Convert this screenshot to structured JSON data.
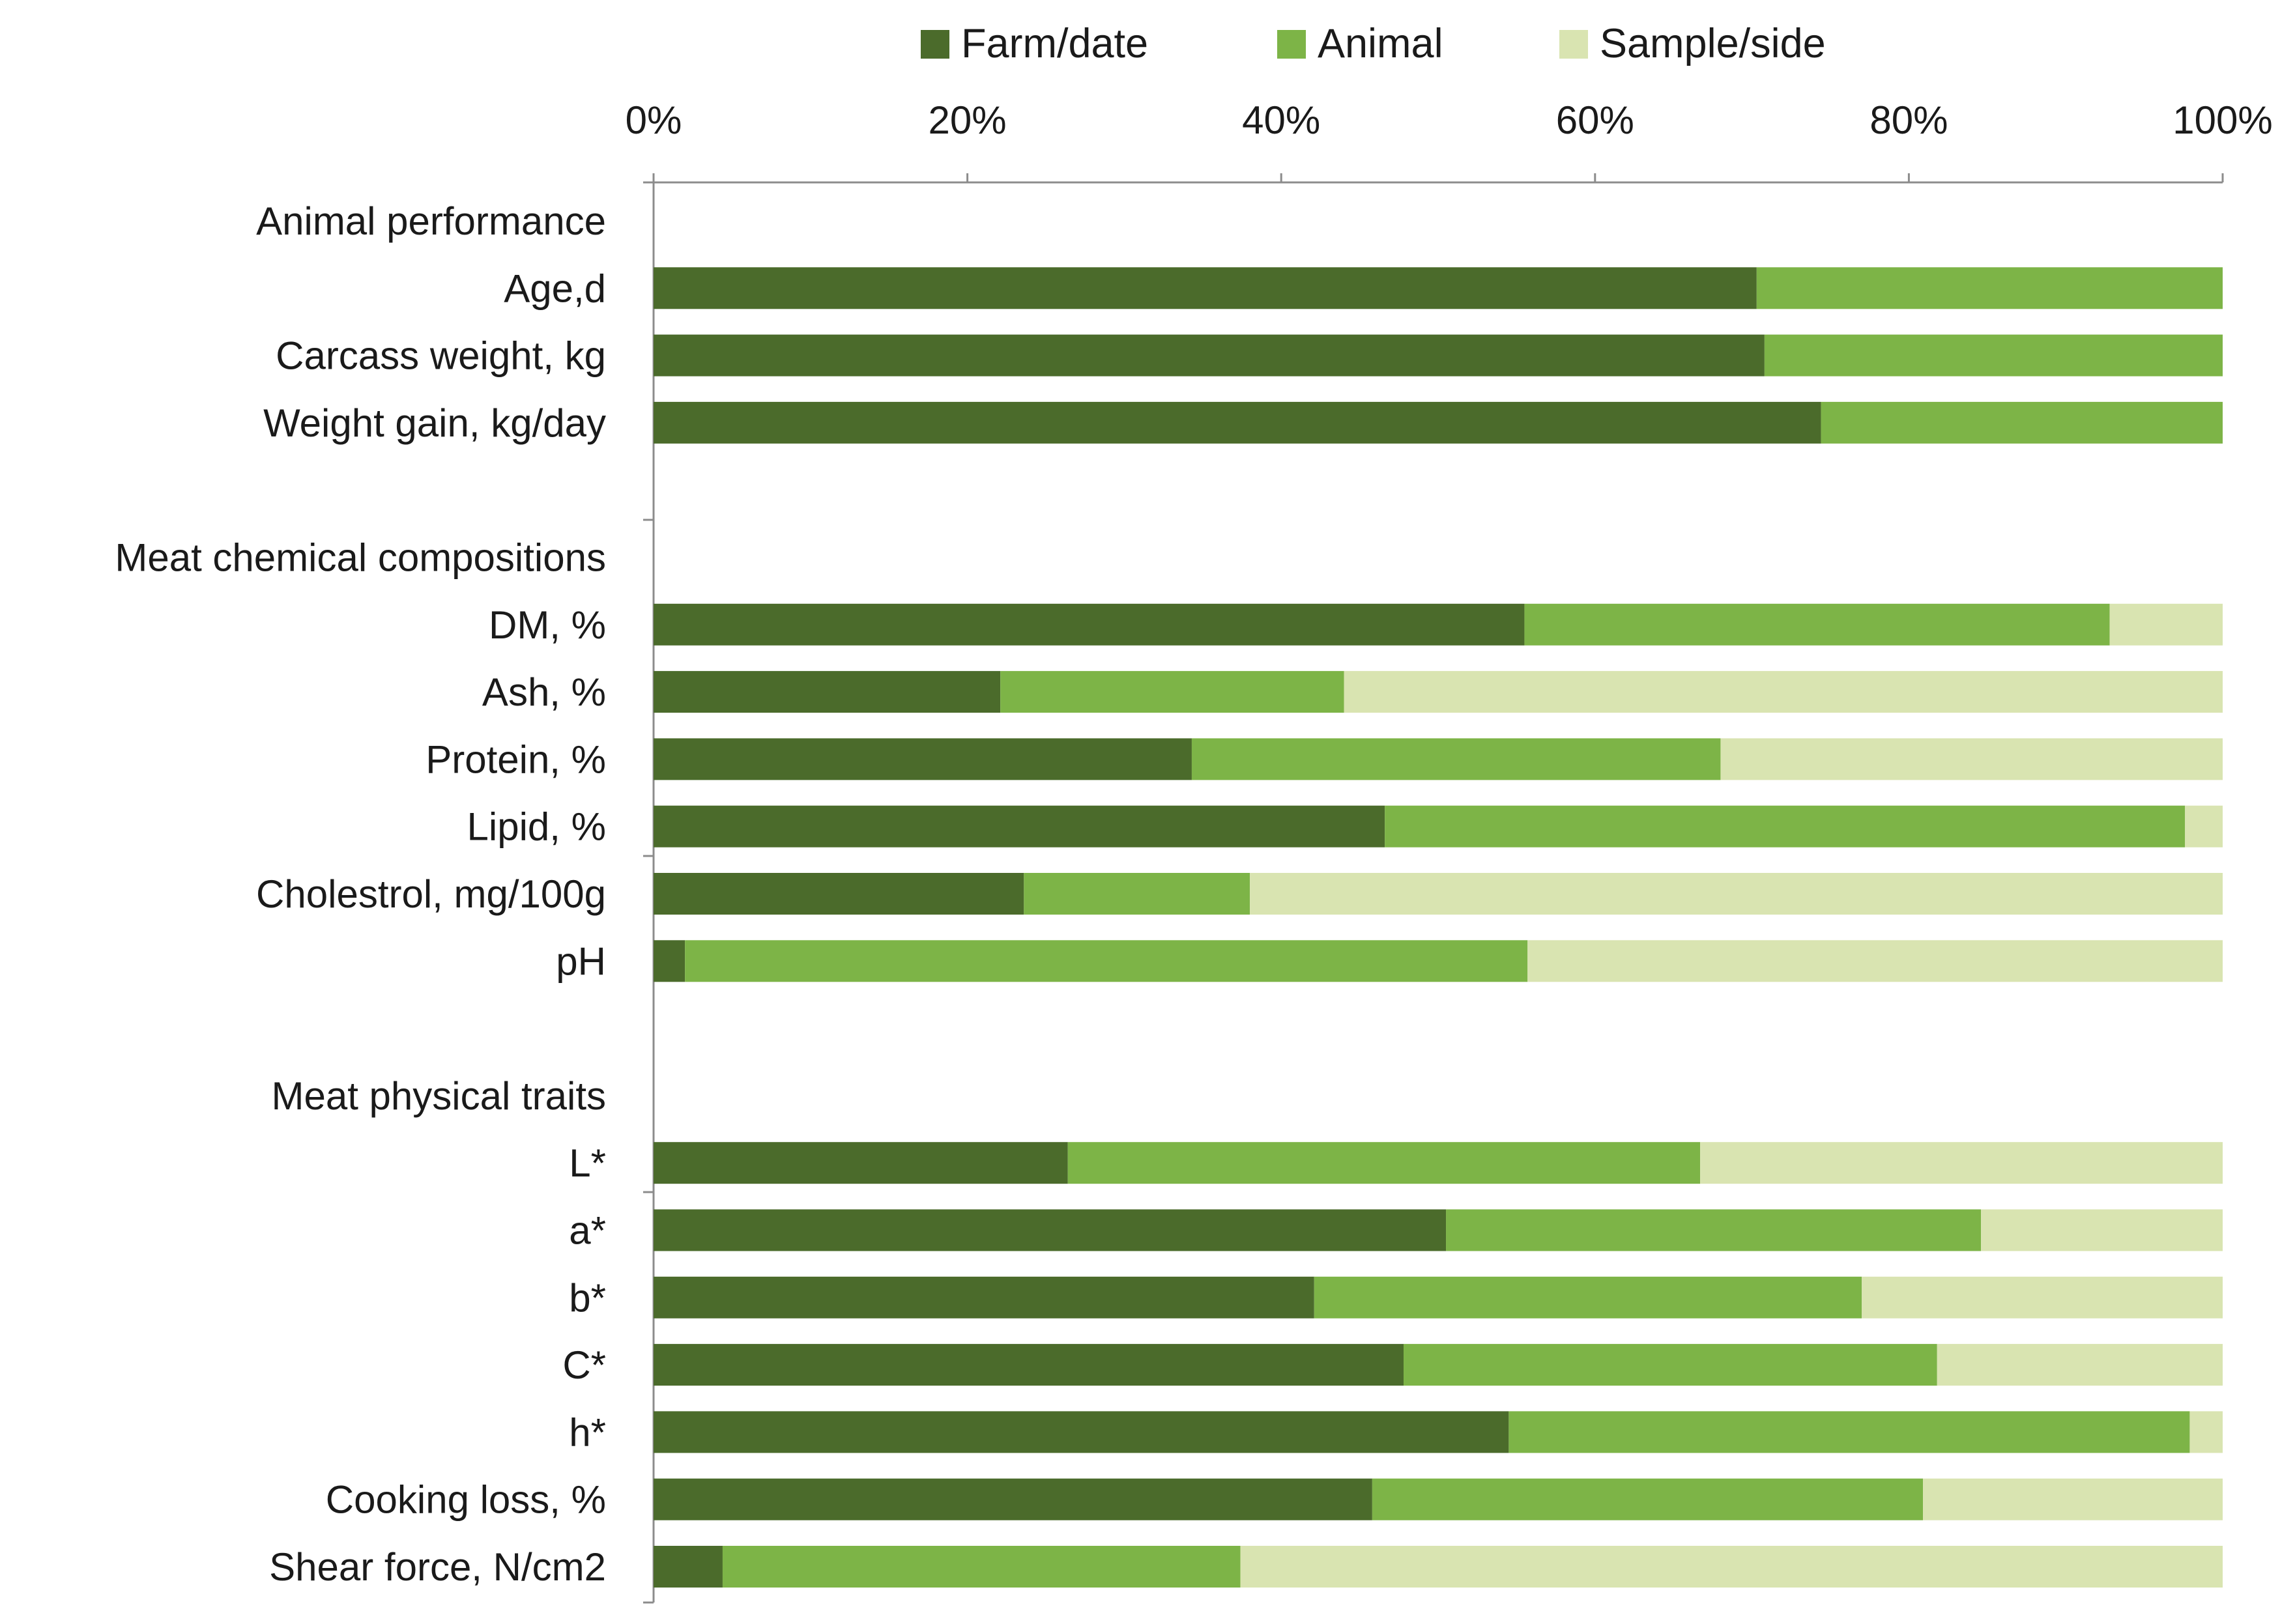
{
  "chart_data": {
    "type": "bar",
    "orientation": "horizontal",
    "stacked": true,
    "xlim": [
      0,
      100
    ],
    "x_ticks": [
      "0%",
      "20%",
      "40%",
      "60%",
      "80%",
      "100%"
    ],
    "x_tick_values": [
      0,
      20,
      40,
      60,
      80,
      100
    ],
    "x_axis_position": "top",
    "legend_position": "top",
    "grid": false,
    "series": [
      {
        "name": "Farm/date",
        "color": "#4b6b2b"
      },
      {
        "name": "Animal",
        "color": "#7db447"
      },
      {
        "name": "Sample/side",
        "color": "#d9e4b1"
      }
    ],
    "rows": [
      {
        "label": "Animal performance",
        "header": true
      },
      {
        "label": "Age,d",
        "values": [
          70.3,
          29.7,
          0
        ]
      },
      {
        "label": "Carcass weight,  kg",
        "values": [
          70.8,
          29.2,
          0
        ]
      },
      {
        "label": "Weight gain, kg/day",
        "values": [
          74.4,
          25.6,
          0
        ]
      },
      {
        "spacer": true
      },
      {
        "label": "Meat chemical compositions",
        "header": true
      },
      {
        "label": "DM, %",
        "values": [
          55.5,
          37.3,
          7.2
        ]
      },
      {
        "label": "Ash, %",
        "values": [
          22.1,
          21.9,
          56.0
        ]
      },
      {
        "label": "Protein, %",
        "values": [
          34.3,
          33.7,
          32.0
        ]
      },
      {
        "label": "Lipid, %",
        "values": [
          46.6,
          51.0,
          2.4
        ]
      },
      {
        "label": "Cholestrol, mg/100g",
        "values": [
          23.6,
          14.4,
          62.0
        ]
      },
      {
        "label": "pH",
        "values": [
          2.0,
          53.7,
          44.3
        ]
      },
      {
        "spacer": true
      },
      {
        "label": "Meat physical traits",
        "header": true
      },
      {
        "label": "L*",
        "values": [
          26.4,
          40.3,
          33.3
        ]
      },
      {
        "label": "a*",
        "values": [
          50.5,
          34.1,
          15.4
        ]
      },
      {
        "label": "b*",
        "values": [
          42.1,
          34.9,
          23.0
        ]
      },
      {
        "label": "C*",
        "values": [
          47.8,
          34.0,
          18.2
        ]
      },
      {
        "label": "h*",
        "values": [
          54.5,
          43.4,
          2.1
        ]
      },
      {
        "label": "Cooking loss, %",
        "values": [
          45.8,
          35.1,
          19.1
        ]
      },
      {
        "label": "Shear force, N/cm2",
        "values": [
          4.4,
          33.0,
          62.6
        ]
      }
    ]
  }
}
